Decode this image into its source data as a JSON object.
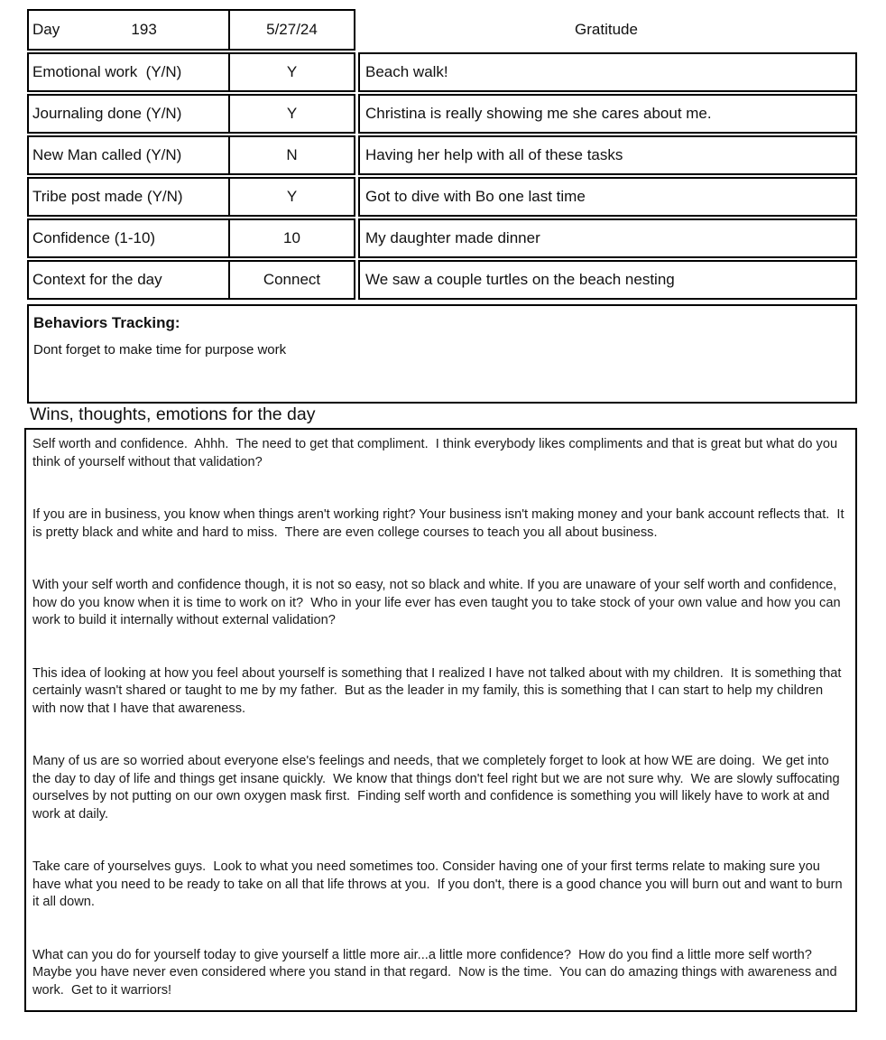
{
  "header": {
    "day_label": "Day",
    "day_value": "193",
    "date": "5/27/24",
    "gratitude_header": "Gratitude"
  },
  "tracking_rows": [
    {
      "label": "Emotional work  (Y/N)",
      "value": "Y",
      "gratitude": "Beach walk!"
    },
    {
      "label": "Journaling done (Y/N)",
      "value": "Y",
      "gratitude": "Christina is really showing me she cares about me."
    },
    {
      "label": "New Man called (Y/N)",
      "value": "N",
      "gratitude": "Having her help with all of these tasks"
    },
    {
      "label": "Tribe post made (Y/N)",
      "value": "Y",
      "gratitude": "Got to dive with Bo one last time"
    },
    {
      "label": "Confidence (1-10)",
      "value": "10",
      "gratitude": "My daughter made dinner"
    },
    {
      "label": "Context for the day",
      "value": "Connect",
      "gratitude": "We saw a couple turtles on the beach nesting"
    }
  ],
  "behaviors": {
    "title": "Behaviors Tracking:",
    "note": "Dont forget to make time for purpose work"
  },
  "wins": {
    "title": "Wins, thoughts, emotions for the day",
    "paragraphs": [
      "Self worth and confidence.  Ahhh.  The need to get that compliment.  I think everybody likes compliments and that is great but what do you think of yourself without that validation?",
      "If you are in business, you know when things aren't working right? Your business isn't making money and your bank account reflects that.  It is pretty black and white and hard to miss.  There are even college courses to teach you all about business.",
      "With your self worth and confidence though, it is not so easy, not so black and white. If you are unaware of your self worth and confidence, how do you know when it is time to work on it?  Who in your life ever has even taught you to take stock of your own value and how you can work to build it internally without external validation?",
      "This idea of looking at how you feel about yourself is something that I realized I have not talked about with my children.  It is something that certainly wasn't shared or taught to me by my father.  But as the leader in my family, this is something that I can start to help my children with now that I have that awareness.",
      "Many of us are so worried about everyone else's feelings and needs, that we completely forget to look at how WE are doing.  We get into the day to day of life and things get insane quickly.  We know that things don't feel right but we are not sure why.  We are slowly suffocating ourselves by not putting on our own oxygen mask first.  Finding self worth and confidence is something you will likely have to work at and work at daily.",
      "Take care of yourselves guys.  Look to what you need sometimes too. Consider having one of your first terms relate to making sure you have what you need to be ready to take on all that life throws at you.  If you don't, there is a good chance you will burn out and want to burn it all down.",
      "What can you do for yourself today to give yourself a little more air...a little more confidence?  How do you find a little more self worth?  Maybe you have never even considered where you stand in that regard.  Now is the time.  You can do amazing things with awareness and work.  Get to it warriors!"
    ]
  },
  "colors": {
    "border": "#000000",
    "text": "#111111",
    "background": "#ffffff"
  }
}
